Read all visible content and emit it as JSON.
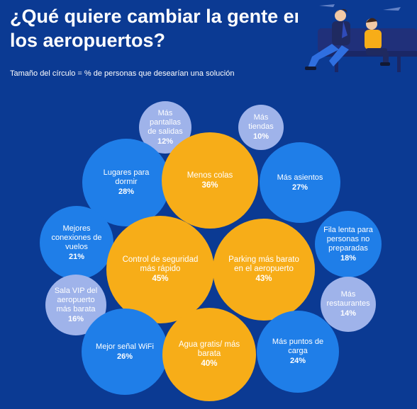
{
  "header": {
    "title": "¿Qué quiere cambiar la gente en los aeropuertos?",
    "subtitle": "Tamaño del círculo = % de personas que desearían una solución"
  },
  "colors": {
    "background": "#0b3a93",
    "large": "#f7ad18",
    "medium": "#1f7ee8",
    "small": "#9fb3ea"
  },
  "chart_data": {
    "type": "bubble",
    "title": "¿Qué quiere cambiar la gente en los aeropuertos?",
    "subtitle": "Tamaño del círculo = % de personas que desearían una solución",
    "items": [
      {
        "label": "Más pantallas de salidas",
        "value": "12%"
      },
      {
        "label": "Más tiendas",
        "value": "10%"
      },
      {
        "label": "Lugares para dormir",
        "value": "28%"
      },
      {
        "label": "Menos colas",
        "value": "36%"
      },
      {
        "label": "Más asientos",
        "value": "27%"
      },
      {
        "label": "Mejores conexiones de vuelos",
        "value": "21%"
      },
      {
        "label": "Control de seguridad más rápido",
        "value": "45%"
      },
      {
        "label": "Parking más barato en el aeropuerto",
        "value": "43%"
      },
      {
        "label": "Fila lenta para personas no preparadas",
        "value": "18%"
      },
      {
        "label": "Sala VIP del aeropuerto más barata",
        "value": "16%"
      },
      {
        "label": "Más restaurantes",
        "value": "14%"
      },
      {
        "label": "Mejor señal WiFi",
        "value": "26%"
      },
      {
        "label": "Agua gratis/ más barata",
        "value": "40%"
      },
      {
        "label": "Más puntos de carga",
        "value": "24%"
      }
    ]
  }
}
